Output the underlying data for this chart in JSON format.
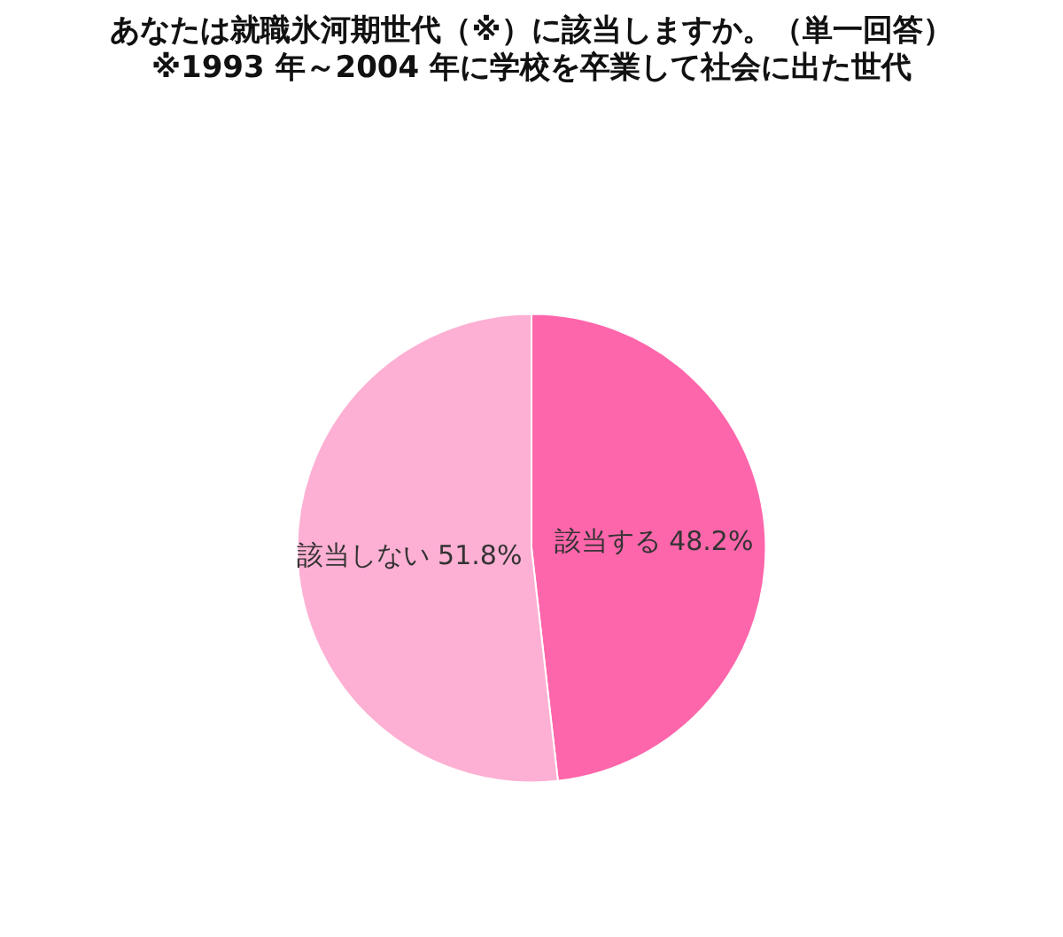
{
  "chart_data": {
    "type": "pie",
    "title": "あなたは就職氷河期世代（※）に該当しますか。（単一回答）",
    "subtitle": "※1993 年～2004 年に学校を卒業して社会に出た世代",
    "categories": [
      "該当する",
      "該当しない"
    ],
    "values": [
      48.2,
      51.8
    ],
    "value_labels": [
      "48.2%",
      "51.8%"
    ],
    "colors": [
      "#fe66ab",
      "#fdb0d3"
    ],
    "legend": false
  }
}
